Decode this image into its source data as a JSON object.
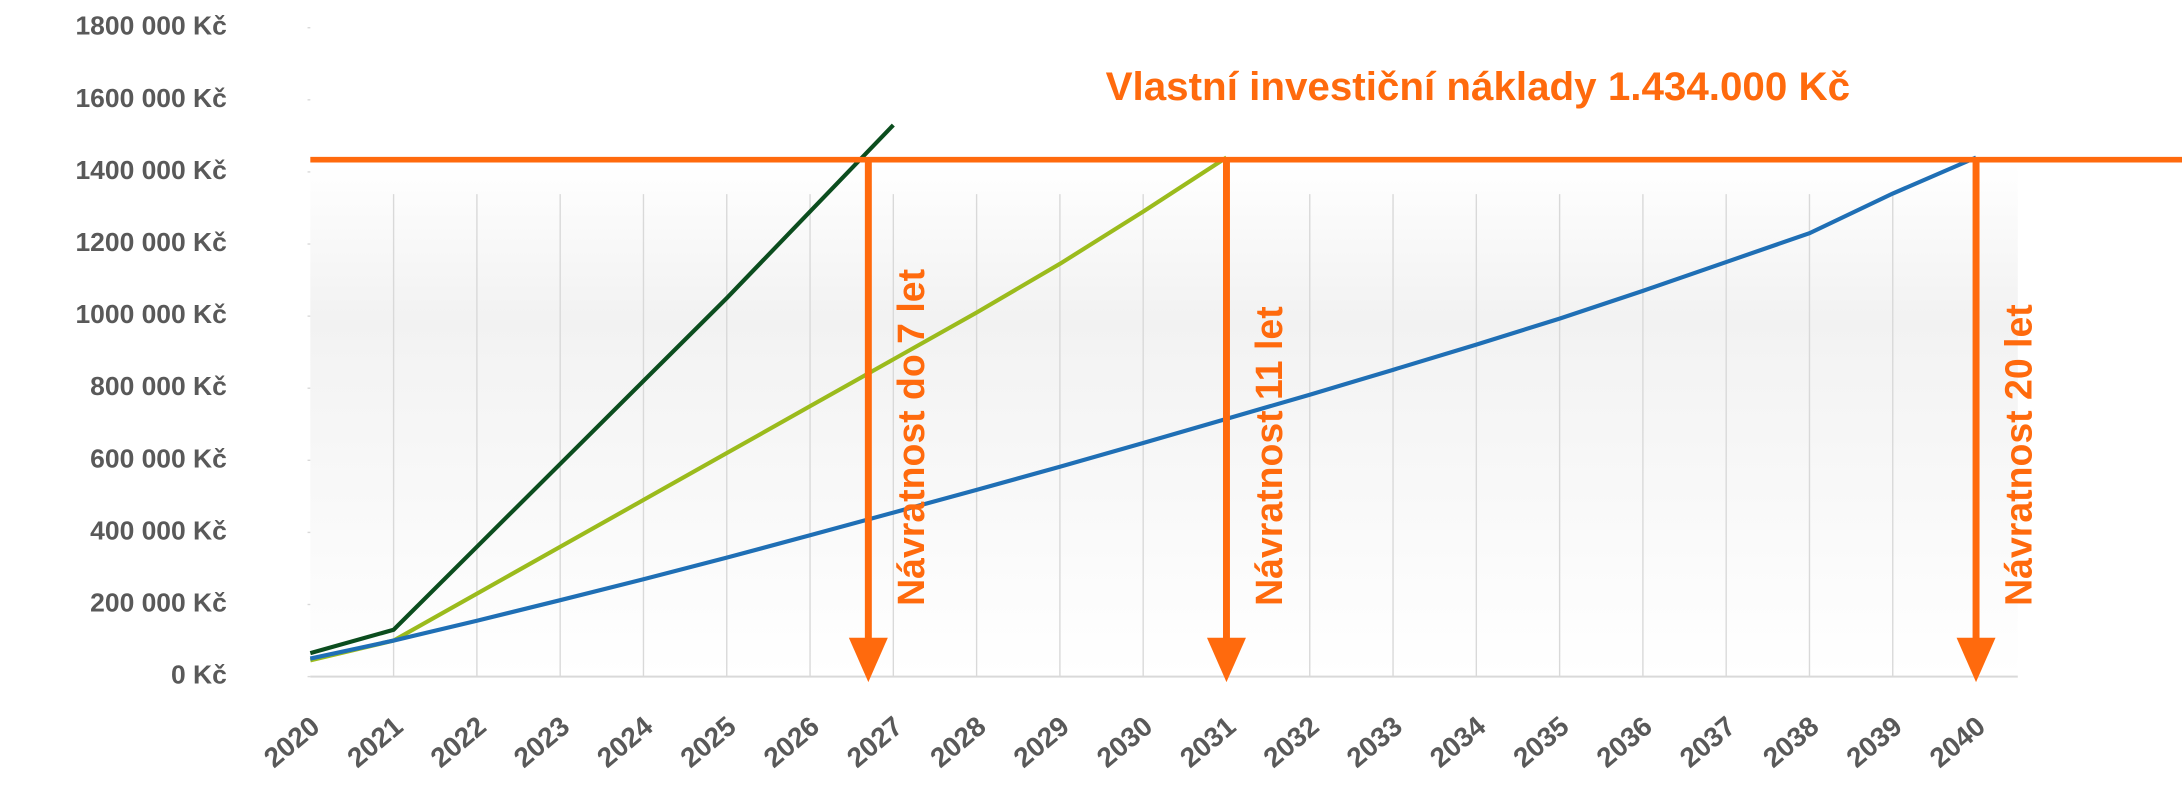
{
  "chart_data": {
    "type": "line",
    "categories": [
      "2020",
      "2021",
      "2022",
      "2023",
      "2024",
      "2025",
      "2026",
      "2027",
      "2028",
      "2029",
      "2030",
      "2031",
      "2032",
      "2033",
      "2034",
      "2035",
      "2036",
      "2037",
      "2038",
      "2039",
      "2040"
    ],
    "series": [
      {
        "color": "#0b4d1e",
        "values": [
          65000,
          130000,
          360000,
          590000,
          820000,
          1050000,
          1290000,
          1530000,
          null,
          null,
          null,
          null,
          null,
          null,
          null,
          null,
          null,
          null,
          null,
          null,
          null
        ]
      },
      {
        "color": "#9bbb1c",
        "values": [
          45000,
          100000,
          230000,
          360000,
          490000,
          620000,
          750000,
          880000,
          1010000,
          1145000,
          1290000,
          1440000,
          null,
          null,
          null,
          null,
          null,
          null,
          null,
          null,
          null
        ]
      },
      {
        "color": "#1f6fb5",
        "values": [
          50000,
          100000,
          155000,
          212000,
          270000,
          330000,
          392000,
          455000,
          518000,
          582000,
          648000,
          715000,
          782000,
          851000,
          921000,
          993000,
          1070000,
          1150000,
          1230000,
          1340000,
          1440000
        ]
      }
    ],
    "ylim": [
      0,
      1800000
    ],
    "yticks": [
      {
        "value": 0,
        "label": "0 Kč"
      },
      {
        "value": 200000,
        "label": "200 000 Kč"
      },
      {
        "value": 400000,
        "label": "400 000 Kč"
      },
      {
        "value": 600000,
        "label": "600 000 Kč"
      },
      {
        "value": 800000,
        "label": "800 000 Kč"
      },
      {
        "value": 1000000,
        "label": "1000 000 Kč"
      },
      {
        "value": 1200000,
        "label": "1200 000 Kč"
      },
      {
        "value": 1400000,
        "label": "1400 000 Kč"
      },
      {
        "value": 1600000,
        "label": "1600 000 Kč"
      },
      {
        "value": 1800000,
        "label": "1800 000 Kč"
      }
    ],
    "threshold": {
      "label": "Vlastní investiční náklady 1.434.000 Kč",
      "value": 1434000,
      "color": "#ff6a0d"
    },
    "annotations": [
      {
        "text": "Návratnost do 7 let",
        "x": 2026.7
      },
      {
        "text": "Návratnost 11 let",
        "x": 2031
      },
      {
        "text": "Návratnost 20 let",
        "x": 2040
      }
    ]
  }
}
